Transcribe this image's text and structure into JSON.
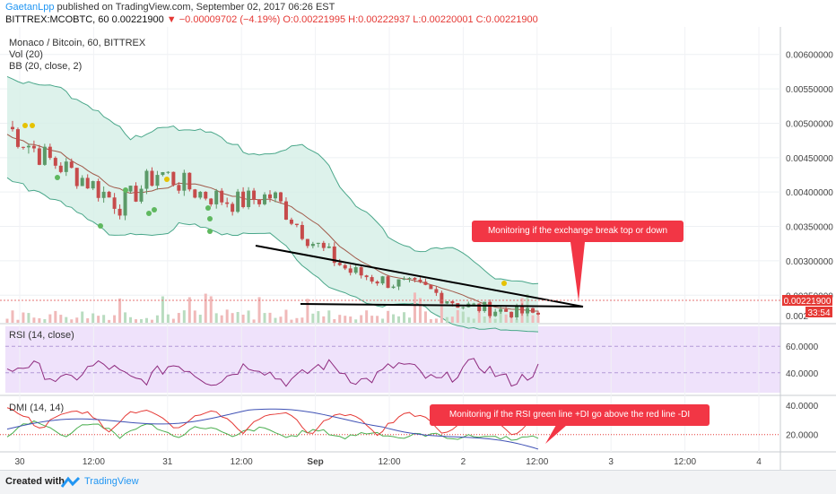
{
  "header": {
    "author": "GaetanLpp",
    "published_text": "published on TradingView.com, September 02, 2017 06:26 EST",
    "symbol": "BITTREX:MCOBTC, 60",
    "last": "0.00221900",
    "change": "−0.00009702 (−4.19%)",
    "ohlc_text": "O:0.00221995 H:0.00222937 L:0.00220001 C:0.00221900"
  },
  "legend": {
    "title": "Monaco / Bitcoin, 60, BITTREX",
    "vol": "Vol (20)",
    "bb": "BB (20, close, 2)",
    "rsi": "RSI (14, close)",
    "dmi": "DMI (14, 14)"
  },
  "price_axis": {
    "ticks": [
      "0.00600000",
      "0.00550000",
      "0.00500000",
      "0.00450000",
      "0.00400000",
      "0.00350000",
      "0.00300000",
      "0.00250000",
      "0.002"
    ],
    "last_label": "0.00221900",
    "countdown": "33:54"
  },
  "rsi_axis": {
    "ticks": [
      "60.0000",
      "40.0000"
    ]
  },
  "dmi_axis": {
    "ticks": [
      "40.0000",
      "20.0000"
    ]
  },
  "time_axis": {
    "ticks": [
      "30",
      "12:00",
      "31",
      "12:00",
      "Sep",
      "12:00",
      "2",
      "12:00",
      "3",
      "12:00",
      "4"
    ]
  },
  "annotations": [
    "Monitoring if the exchange break top or down",
    "Monitoring if the RSI green line +DI go above the red line -DI"
  ],
  "footer": {
    "created": "Created with",
    "brand": "TradingView"
  },
  "colors": {
    "up": "#5b9a68",
    "down": "#c64b4b",
    "bb_fill": "#d4efe6",
    "bb_line": "#4aa78a",
    "rsi": "#8e2a7e",
    "rsi_bg": "#efe2fb",
    "plus_di": "#4caf50",
    "minus_di": "#e53935",
    "adx": "#3f51b5",
    "callout": "#f23645"
  },
  "chart_data": {
    "type": "candlestick",
    "title": "Monaco / Bitcoin, 60, BITTREX",
    "x": [
      "Aug 29 18:00",
      "Aug 30 00:00",
      "Aug 30 06:00",
      "Aug 30 12:00",
      "Aug 30 18:00",
      "Aug 31 00:00",
      "Aug 31 06:00",
      "Aug 31 12:00",
      "Aug 31 18:00",
      "Sep 01 00:00",
      "Sep 01 06:00",
      "Sep 01 12:00",
      "Sep 01 18:00",
      "Sep 02 00:00",
      "Sep 02 06:00"
    ],
    "close": [
      0.00495,
      0.0045,
      0.0042,
      0.0038,
      0.0043,
      0.004,
      0.00385,
      0.00395,
      0.0033,
      0.00285,
      0.0027,
      0.0026,
      0.00235,
      0.00228,
      0.00222
    ],
    "ylim": [
      0.0021,
      0.0064
    ],
    "last_price": 0.002219,
    "annotations": [
      "Monitoring if the exchange break top or down",
      "Monitoring if the RSI green line +DI go above the red line -DI"
    ]
  }
}
